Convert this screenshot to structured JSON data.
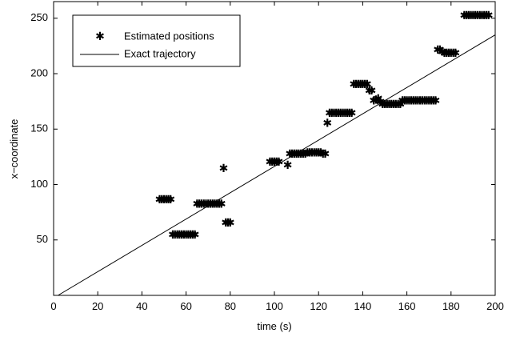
{
  "chart_data": {
    "type": "scatter",
    "title": "",
    "xlabel": "time (s)",
    "ylabel": "x−coordinate",
    "xlim": [
      0,
      200
    ],
    "ylim": [
      0,
      265
    ],
    "xticks": [
      "0",
      "20",
      "40",
      "60",
      "80",
      "100",
      "120",
      "140",
      "160",
      "180",
      "200"
    ],
    "yticks": [
      "50",
      "100",
      "150",
      "200",
      "250"
    ],
    "grid": false,
    "legend_position": "top-left",
    "legend": [
      {
        "label": "Estimated positions",
        "marker": "*"
      },
      {
        "label": "Exact trajectory",
        "marker": "line"
      }
    ],
    "series": [
      {
        "name": "Estimated positions",
        "kind": "scatter",
        "points": [
          [
            48,
            86
          ],
          [
            49,
            86
          ],
          [
            50,
            86
          ],
          [
            51,
            86
          ],
          [
            52,
            86
          ],
          [
            53,
            86
          ],
          [
            54,
            54
          ],
          [
            55,
            54
          ],
          [
            56,
            54
          ],
          [
            57,
            54
          ],
          [
            58,
            54
          ],
          [
            59,
            54
          ],
          [
            60,
            54
          ],
          [
            61,
            54
          ],
          [
            62,
            54
          ],
          [
            63,
            54
          ],
          [
            64,
            54
          ],
          [
            65,
            82
          ],
          [
            66,
            82
          ],
          [
            67,
            82
          ],
          [
            68,
            82
          ],
          [
            69,
            82
          ],
          [
            70,
            82
          ],
          [
            71,
            82
          ],
          [
            72,
            82
          ],
          [
            73,
            82
          ],
          [
            74,
            82
          ],
          [
            75,
            82
          ],
          [
            76,
            82
          ],
          [
            77,
            114
          ],
          [
            78,
            65
          ],
          [
            79,
            65
          ],
          [
            80,
            65
          ],
          [
            98,
            120
          ],
          [
            99,
            120
          ],
          [
            100,
            120
          ],
          [
            101,
            120
          ],
          [
            102,
            120
          ],
          [
            106,
            117
          ],
          [
            107,
            127
          ],
          [
            108,
            127
          ],
          [
            109,
            127
          ],
          [
            110,
            127
          ],
          [
            111,
            127
          ],
          [
            112,
            127
          ],
          [
            113,
            127
          ],
          [
            114,
            127
          ],
          [
            115,
            128
          ],
          [
            116,
            128
          ],
          [
            117,
            128
          ],
          [
            118,
            128
          ],
          [
            119,
            128
          ],
          [
            120,
            128
          ],
          [
            121,
            128
          ],
          [
            122,
            127
          ],
          [
            123,
            127
          ],
          [
            124,
            155
          ],
          [
            125,
            164
          ],
          [
            126,
            164
          ],
          [
            127,
            164
          ],
          [
            128,
            164
          ],
          [
            129,
            164
          ],
          [
            130,
            164
          ],
          [
            131,
            164
          ],
          [
            132,
            164
          ],
          [
            133,
            164
          ],
          [
            134,
            164
          ],
          [
            135,
            164
          ],
          [
            136,
            190
          ],
          [
            137,
            190
          ],
          [
            138,
            190
          ],
          [
            139,
            190
          ],
          [
            140,
            190
          ],
          [
            141,
            190
          ],
          [
            142,
            190
          ],
          [
            143,
            184
          ],
          [
            144,
            184
          ],
          [
            145,
            175
          ],
          [
            146,
            176
          ],
          [
            147,
            177
          ],
          [
            148,
            174
          ],
          [
            149,
            172
          ],
          [
            150,
            172
          ],
          [
            151,
            172
          ],
          [
            152,
            172
          ],
          [
            153,
            172
          ],
          [
            154,
            172
          ],
          [
            155,
            172
          ],
          [
            156,
            172
          ],
          [
            157,
            172
          ],
          [
            158,
            175
          ],
          [
            159,
            175
          ],
          [
            160,
            175
          ],
          [
            161,
            175
          ],
          [
            162,
            175
          ],
          [
            163,
            175
          ],
          [
            164,
            175
          ],
          [
            165,
            175
          ],
          [
            166,
            175
          ],
          [
            167,
            175
          ],
          [
            168,
            175
          ],
          [
            169,
            175
          ],
          [
            170,
            175
          ],
          [
            171,
            175
          ],
          [
            172,
            175
          ],
          [
            173,
            175
          ],
          [
            174,
            221
          ],
          [
            175,
            221
          ],
          [
            176,
            219
          ],
          [
            177,
            218
          ],
          [
            178,
            218
          ],
          [
            179,
            218
          ],
          [
            180,
            218
          ],
          [
            181,
            218
          ],
          [
            182,
            218
          ],
          [
            186,
            252
          ],
          [
            187,
            252
          ],
          [
            188,
            252
          ],
          [
            189,
            252
          ],
          [
            190,
            252
          ],
          [
            191,
            252
          ],
          [
            192,
            252
          ],
          [
            193,
            252
          ],
          [
            194,
            252
          ],
          [
            195,
            252
          ],
          [
            196,
            252
          ],
          [
            197,
            252
          ]
        ]
      },
      {
        "name": "Exact trajectory",
        "kind": "line",
        "points": [
          [
            2,
            0
          ],
          [
            200,
            235
          ]
        ]
      }
    ]
  }
}
